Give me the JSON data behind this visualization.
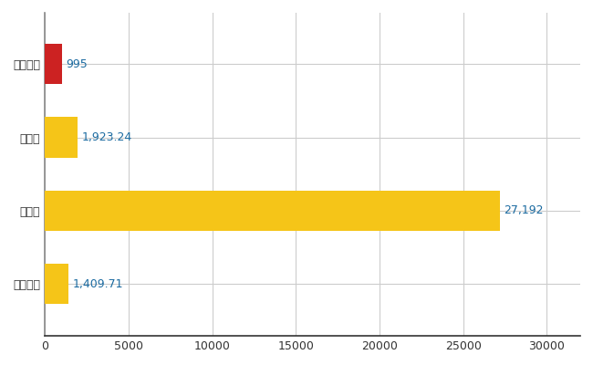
{
  "categories": [
    "太宰府市",
    "県平均",
    "県最大",
    "全国平均"
  ],
  "values": [
    995,
    1923.24,
    27192,
    1409.71
  ],
  "bar_colors": [
    "#cc2222",
    "#f5c518",
    "#f5c518",
    "#f5c518"
  ],
  "labels": [
    "995",
    "1,923.24",
    "27,192",
    "1,409.71"
  ],
  "xlim": [
    0,
    32000
  ],
  "xticks": [
    0,
    5000,
    10000,
    15000,
    20000,
    25000,
    30000
  ],
  "xtick_labels": [
    "0",
    "5000",
    "10000",
    "15000",
    "20000",
    "25000",
    "30000"
  ],
  "background_color": "#ffffff",
  "grid_color": "#cccccc",
  "bar_height": 0.55,
  "label_fontsize": 9,
  "tick_fontsize": 9,
  "label_color": "#1a6aa0"
}
